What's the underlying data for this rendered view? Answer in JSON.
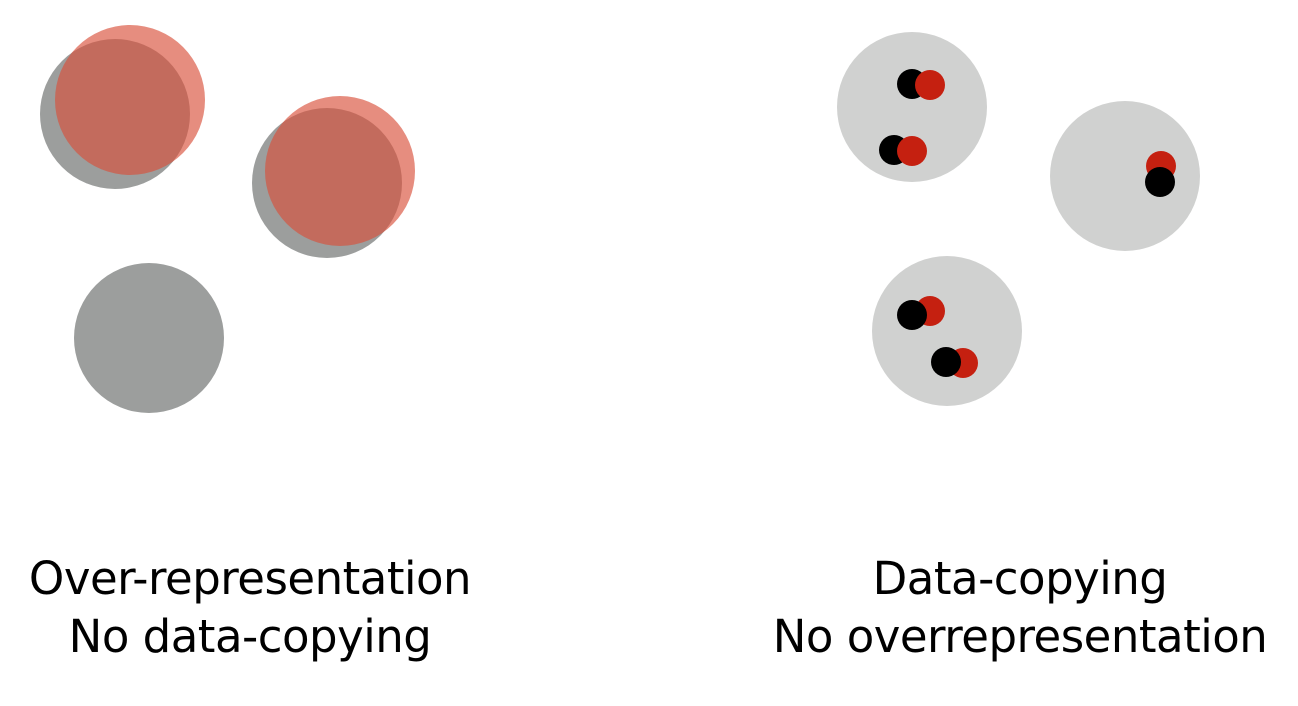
{
  "colors": {
    "dark_gray": "#9c9e9d",
    "light_gray": "#d0d1d0",
    "salmon_red": "#d8503b",
    "dot_red": "#c52010",
    "dot_black": "#000000"
  },
  "panels": [
    {
      "caption_line1": "Over-representation",
      "caption_line2": "No data-copying"
    },
    {
      "caption_line1": "Data-copying",
      "caption_line2": "No overrepresentation"
    }
  ]
}
